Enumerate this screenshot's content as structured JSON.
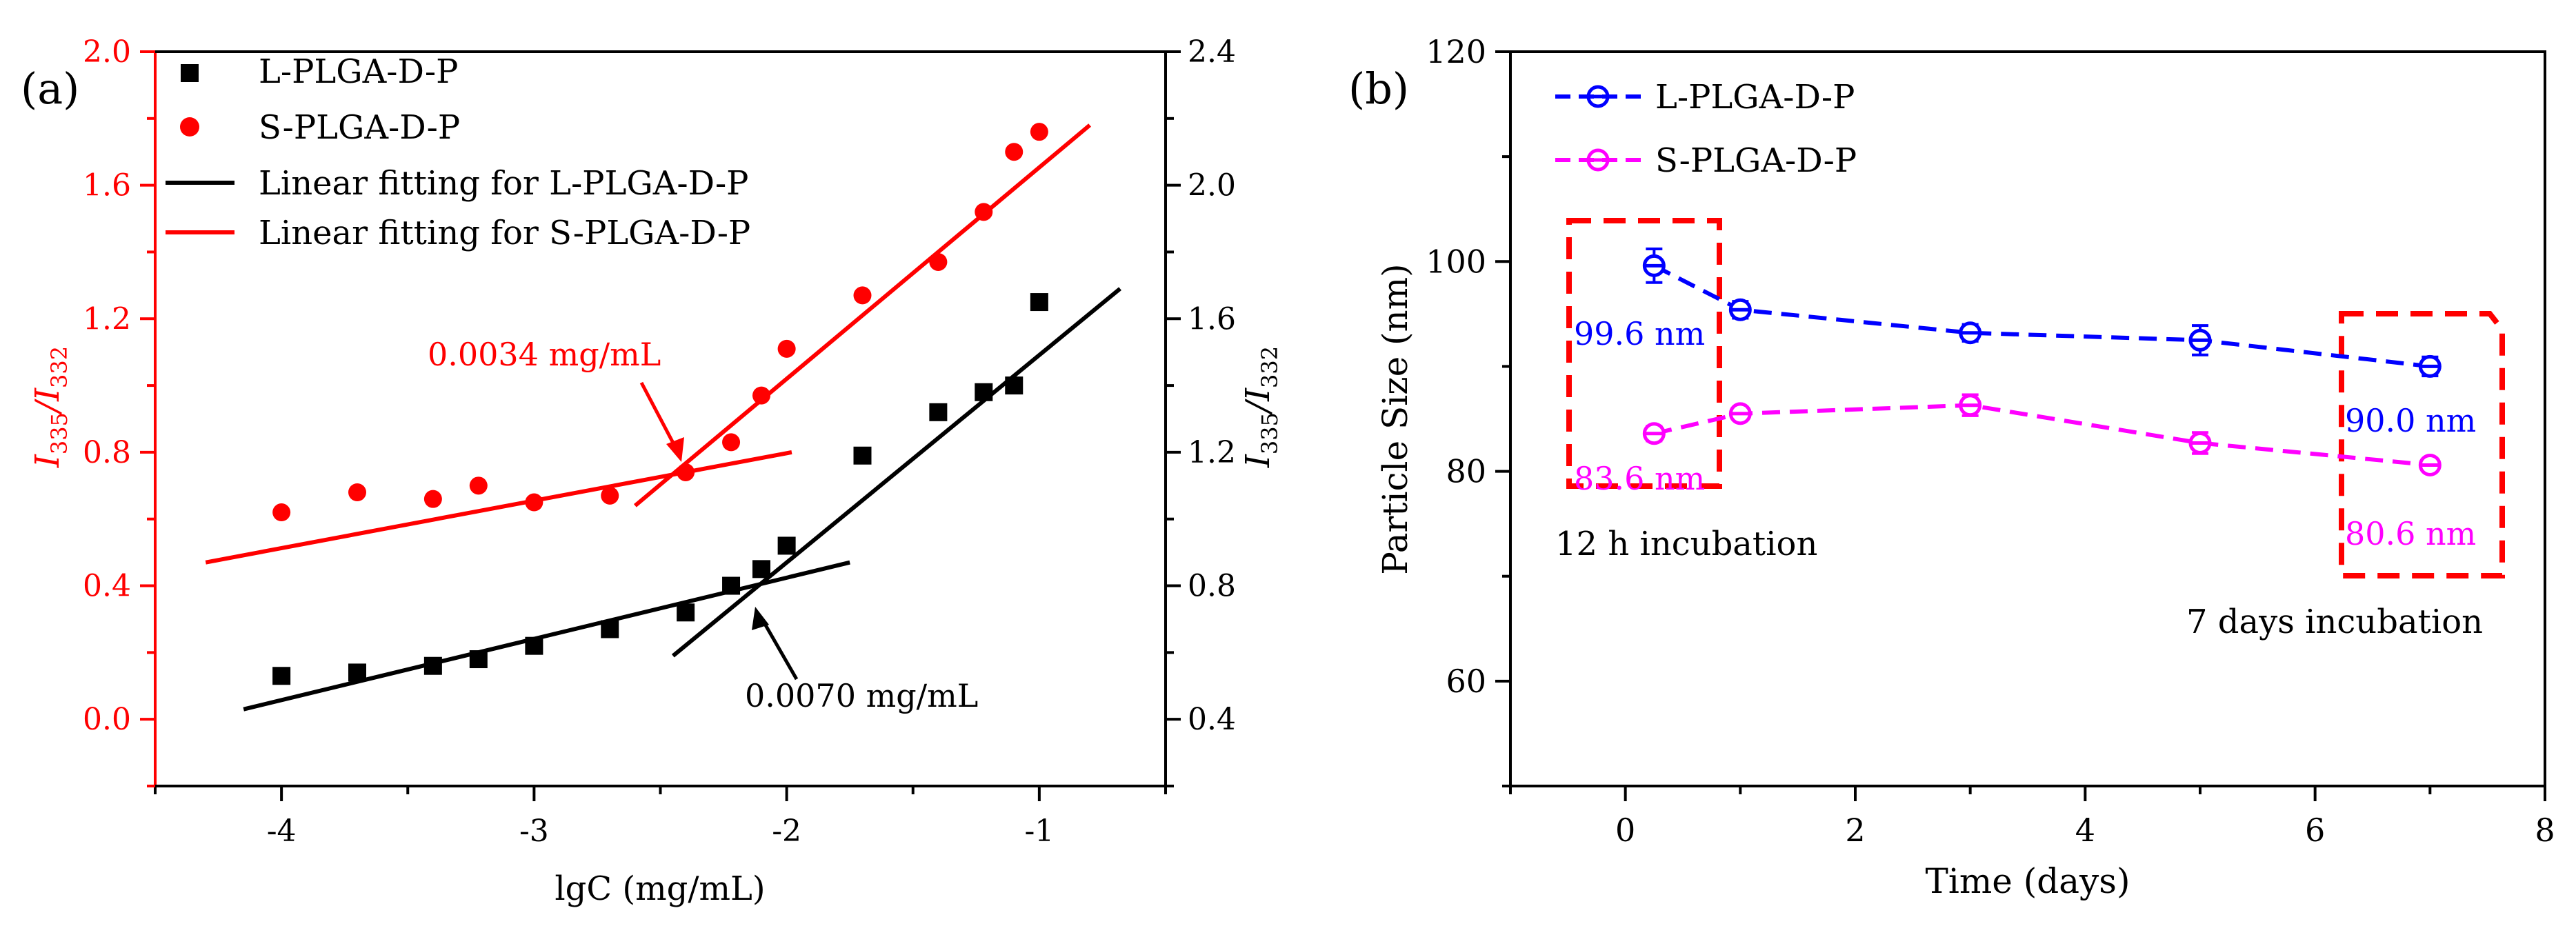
{
  "chart_data": [
    {
      "type": "scatter",
      "panel_label": "(a)",
      "xlabel_main": "lgC",
      "xlabel_unit": " (mg/mL)",
      "xlim": [
        -4.5,
        -0.5
      ],
      "xticks": [
        -4,
        -3,
        -2,
        -1
      ],
      "x_tick_labels": [
        "-4",
        "-3",
        "-2",
        "-1"
      ],
      "ylabel_left": {
        "base": "I",
        "sub1": "335",
        "slash": "/I",
        "sub2": "332"
      },
      "ylabel_right": {
        "base": "I",
        "sub1": "335",
        "slash": "/I",
        "sub2": "332"
      },
      "ylim_left": [
        -0.2,
        2.0
      ],
      "yticks_left": [
        0.0,
        0.4,
        0.8,
        1.2,
        1.6,
        2.0
      ],
      "y_tick_labels_left": [
        "0.0",
        "0.4",
        "0.8",
        "1.2",
        "1.6",
        "2.0"
      ],
      "ylim_right": [
        0.2,
        2.4
      ],
      "yticks_right": [
        0.4,
        0.8,
        1.2,
        1.6,
        2.0,
        2.4
      ],
      "y_tick_labels_right": [
        "0.4",
        "0.8",
        "1.2",
        "1.6",
        "2.0",
        "2.4"
      ],
      "colors": {
        "S": "#ff0000",
        "L": "#000000"
      },
      "series": [
        {
          "name": "L-PLGA-D-P",
          "axis": "right",
          "marker": "square",
          "x": [
            -4.0,
            -3.7,
            -3.4,
            -3.22,
            -3.0,
            -2.7,
            -2.4,
            -2.22,
            -2.1,
            -2.0,
            -1.7,
            -1.4,
            -1.22,
            -1.1,
            -1.0
          ],
          "y": [
            0.53,
            0.54,
            0.56,
            0.58,
            0.62,
            0.67,
            0.72,
            0.8,
            0.85,
            0.92,
            1.19,
            1.32,
            1.38,
            1.4,
            1.65
          ]
        },
        {
          "name": "S-PLGA-D-P",
          "axis": "left",
          "marker": "circle",
          "x": [
            -4.0,
            -3.7,
            -3.4,
            -3.22,
            -3.0,
            -2.7,
            -2.4,
            -2.22,
            -2.1,
            -2.0,
            -1.7,
            -1.4,
            -1.22,
            -1.1,
            -1.0
          ],
          "y": [
            0.62,
            0.68,
            0.66,
            0.7,
            0.65,
            0.67,
            0.74,
            0.83,
            0.97,
            1.11,
            1.27,
            1.37,
            1.52,
            1.7,
            1.76
          ]
        }
      ],
      "fits": [
        {
          "name": "Linear fitting for L-PLGA-D-P",
          "axis": "right",
          "segments": [
            [
              [
                -4.15,
                0.43
              ],
              [
                -1.75,
                0.87
              ]
            ],
            [
              [
                -2.45,
                0.59
              ],
              [
                -0.68,
                1.69
              ]
            ]
          ]
        },
        {
          "name": "Linear fitting for S-PLGA-D-P",
          "axis": "left",
          "segments": [
            [
              [
                -4.3,
                0.47
              ],
              [
                -1.98,
                0.8
              ]
            ],
            [
              [
                -2.6,
                0.64
              ],
              [
                -0.8,
                1.78
              ]
            ]
          ]
        }
      ],
      "legend": [
        {
          "label": "L-PLGA-D-P",
          "kind": "square"
        },
        {
          "label": "S-PLGA-D-P",
          "kind": "circle"
        },
        {
          "label": "Linear fitting for L-PLGA-D-P",
          "kind": "line-L"
        },
        {
          "label": "Linear fitting for S-PLGA-D-P",
          "kind": "line-S"
        }
      ],
      "annotations": [
        {
          "text": "0.0034 mg/mL",
          "color": "red",
          "x": -2.42,
          "y": 0.74,
          "axis": "left"
        },
        {
          "text": "0.0070 mg/mL",
          "color": "black",
          "x": -2.1,
          "y": 0.835,
          "axis": "right"
        }
      ]
    },
    {
      "type": "line",
      "panel_label": "(b)",
      "xlabel": "Time (days)",
      "ylabel": "Particle Size (nm)",
      "xlim": [
        -1,
        8
      ],
      "xticks": [
        0,
        2,
        4,
        6,
        8
      ],
      "x_tick_labels": [
        "0",
        "2",
        "4",
        "6",
        "8"
      ],
      "ylim": [
        50,
        120
      ],
      "yticks": [
        60,
        80,
        100,
        120
      ],
      "y_tick_labels": [
        "60",
        "80",
        "100",
        "120"
      ],
      "series": [
        {
          "name": "L-PLGA-D-P",
          "color": "#0000ff",
          "x": [
            0.25,
            1,
            3,
            5,
            7
          ],
          "y": [
            99.6,
            95.4,
            93.2,
            92.5,
            90.0
          ],
          "err": [
            1.6,
            0.8,
            0.8,
            1.4,
            0.9
          ]
        },
        {
          "name": "S-PLGA-D-P",
          "color": "#ff00ff",
          "x": [
            0.25,
            1,
            3,
            5,
            7
          ],
          "y": [
            83.6,
            85.5,
            86.3,
            82.7,
            80.6
          ],
          "err": [
            0.7,
            0.5,
            1.0,
            1.0,
            0.6
          ]
        }
      ],
      "value_labels": [
        "99.6 nm",
        "83.6 nm",
        "90.0 nm",
        "80.6 nm"
      ],
      "box_labels": [
        "12 h incubation",
        "7 days incubation"
      ]
    }
  ]
}
